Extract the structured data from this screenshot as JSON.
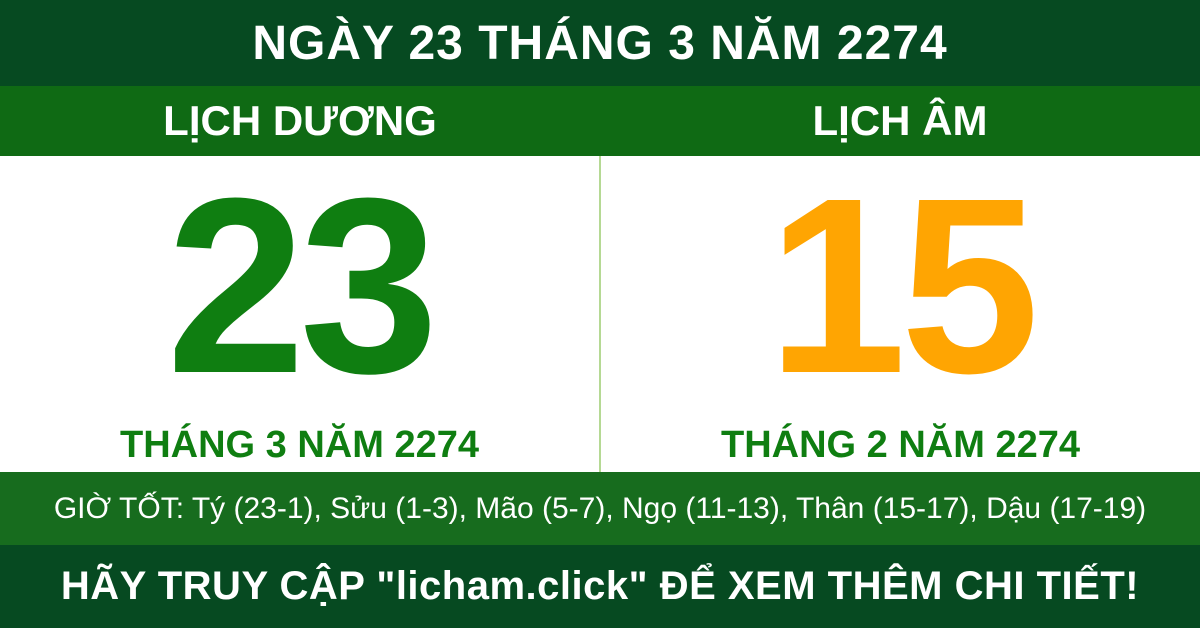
{
  "header": {
    "title": "NGÀY 23 THÁNG 3 NĂM 2274"
  },
  "calendars": {
    "solar": {
      "label": "LỊCH DƯƠNG",
      "day": "23",
      "month_year": "THÁNG 3 NĂM 2274"
    },
    "lunar": {
      "label": "LỊCH ÂM",
      "day": "15",
      "month_year": "THÁNG 2 NĂM 2274"
    }
  },
  "good_hours": {
    "text": "GIỜ TỐT: Tý (23-1), Sửu (1-3), Mão (5-7), Ngọ (11-13), Thân (15-17), Dậu (17-19)"
  },
  "footer": {
    "text": "HÃY TRUY CẬP \"licham.click\" ĐỂ XEM THÊM CHI TIẾT!"
  },
  "colors": {
    "dark_green": "#064a21",
    "medium_green_subheader": "#0f6a14",
    "medium_green_good_hours": "#176c1e",
    "solar_day_green": "#0f7e11",
    "lunar_day_orange": "#ffa502",
    "divider_light_green": "#b5d994",
    "text_white": "#ffffff"
  }
}
